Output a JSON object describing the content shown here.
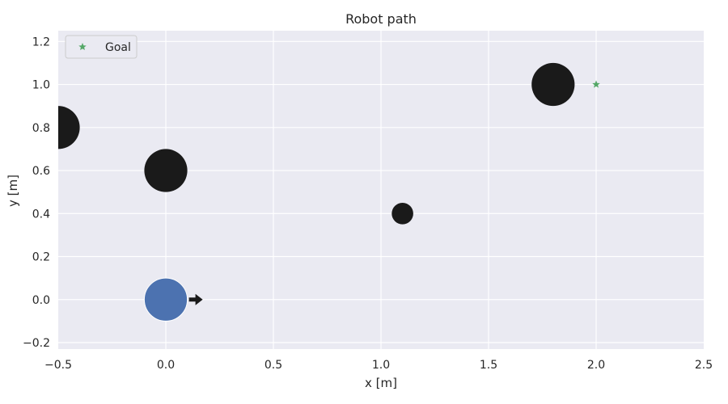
{
  "chart_data": {
    "type": "scatter",
    "title": "Robot path",
    "xlabel": "x [m]",
    "ylabel": "y [m]",
    "xlim": [
      -0.5,
      2.5
    ],
    "ylim": [
      -0.23,
      1.25
    ],
    "xticks": [
      -0.5,
      0.0,
      0.5,
      1.0,
      1.5,
      2.0,
      2.5
    ],
    "xtick_labels": [
      "−0.5",
      "0.0",
      "0.5",
      "1.0",
      "1.5",
      "2.0",
      "2.5"
    ],
    "yticks": [
      -0.2,
      0.0,
      0.2,
      0.4,
      0.6,
      0.8,
      1.0,
      1.2
    ],
    "ytick_labels": [
      "−0.2",
      "0.0",
      "0.2",
      "0.4",
      "0.6",
      "0.8",
      "1.0",
      "1.2"
    ],
    "grid": true,
    "legend_position": "top-left",
    "obstacles": [
      {
        "x": -0.5,
        "y": 0.8,
        "r": 0.1
      },
      {
        "x": 0.0,
        "y": 0.6,
        "r": 0.1
      },
      {
        "x": 1.1,
        "y": 0.4,
        "r": 0.05
      },
      {
        "x": 1.8,
        "y": 1.0,
        "r": 0.1
      }
    ],
    "robot": {
      "x": 0.0,
      "y": 0.0,
      "r": 0.1,
      "heading_deg": 0
    },
    "series": [
      {
        "name": "Goal",
        "marker": "star",
        "x": [
          2.0
        ],
        "y": [
          1.0
        ]
      }
    ],
    "colors": {
      "background": "#eaeaf2",
      "grid": "#ffffff",
      "obstacle": "#1a1a1a",
      "robot": "#4c72b0",
      "goal": "#55a868",
      "arrow": "#1a1a1a"
    }
  }
}
